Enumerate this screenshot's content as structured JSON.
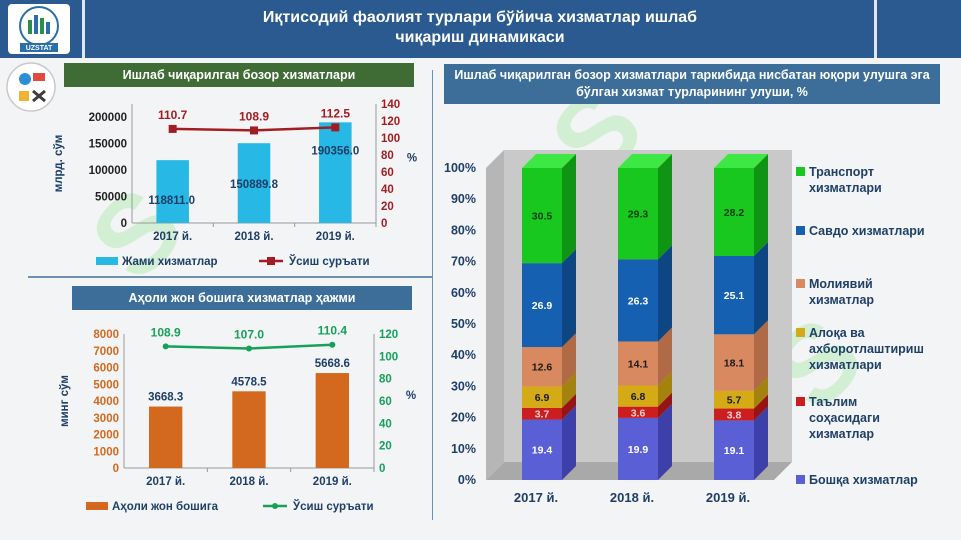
{
  "header": {
    "title_line1": "Иқтисодий фаолият турлари бўйича хизматлар ишлаб",
    "title_line2": "чиқариш динамикаси",
    "logo_text": "UZSTAT"
  },
  "chart1": {
    "title": "Ишлаб чиқарилган бозор хизматлари",
    "chart_data": {
      "type": "bar",
      "categories": [
        "2017 й.",
        "2018 й.",
        "2019 й."
      ],
      "series": [
        {
          "name": "Жами хизматлар",
          "type": "bar",
          "axis": "left",
          "values": [
            118811.0,
            150889.8,
            190356.0
          ],
          "labels": [
            "118811.0",
            "150889.8",
            "190356.0"
          ]
        },
        {
          "name": "Ўсиш суръати",
          "type": "line",
          "axis": "right",
          "values": [
            110.7,
            108.9,
            112.5
          ],
          "labels": [
            "110.7",
            "108.9",
            "112.5"
          ]
        }
      ],
      "ylabel": "млрд. сўм",
      "y2label": "%",
      "ylim": [
        0,
        225000
      ],
      "y2lim": [
        0,
        140
      ],
      "yticks": [
        "0",
        "50000",
        "100000",
        "150000",
        "200000"
      ],
      "y2ticks": [
        "0",
        "20",
        "40",
        "60",
        "80",
        "100",
        "120",
        "140"
      ],
      "colors": {
        "bar": "#27b8e6",
        "line": "#a21d22"
      }
    }
  },
  "chart2": {
    "title": "Аҳоли жон бошига хизматлар ҳажми",
    "chart_data": {
      "type": "bar",
      "categories": [
        "2017 й.",
        "2018 й.",
        "2019 й."
      ],
      "series": [
        {
          "name": "Аҳоли жон бошига",
          "type": "bar",
          "axis": "left",
          "values": [
            3668.3,
            4578.5,
            5668.6
          ],
          "labels": [
            "3668.3",
            "4578.5",
            "5668.6"
          ]
        },
        {
          "name": "Ўсиш суръати",
          "type": "line",
          "axis": "right",
          "values": [
            108.9,
            107.0,
            110.4
          ],
          "labels": [
            "108.9",
            "107.0",
            "110.4"
          ]
        }
      ],
      "ylabel": "минг сўм",
      "y2label": "%",
      "ylim": [
        0,
        8000
      ],
      "y2lim": [
        0,
        120
      ],
      "yticks": [
        "0",
        "1000",
        "2000",
        "3000",
        "4000",
        "5000",
        "6000",
        "7000",
        "8000"
      ],
      "y2ticks": [
        "0",
        "20",
        "40",
        "60",
        "80",
        "100",
        "120"
      ],
      "colors": {
        "bar": "#d2691e",
        "line": "#16a05a",
        "axis_left": "#d2691e",
        "axis_right": "#16a05a"
      }
    }
  },
  "chart3": {
    "title": "Ишлаб чиқарилган бозор хизматлари таркибида нисбатан юқори улушга эга бўлган хизмат турларининг улуши, %",
    "chart_data": {
      "type": "bar",
      "stacked": true,
      "categories": [
        "2017 й.",
        "2018 й.",
        "2019 й."
      ],
      "yticks": [
        "0%",
        "10%",
        "20%",
        "30%",
        "40%",
        "50%",
        "60%",
        "70%",
        "80%",
        "90%",
        "100%"
      ],
      "ylim": [
        0,
        100
      ],
      "series": [
        {
          "name": "Бошқа хизматлар",
          "legend_lines": [
            "Бошқа хизматлар"
          ],
          "values": [
            19.4,
            19.9,
            19.1
          ],
          "labels": [
            "19.4",
            "19.9",
            "19.1"
          ],
          "color": "#5a5fd6",
          "side": "#3c40a8"
        },
        {
          "name": "Таълим соҳасидаги хизматлар",
          "legend_lines": [
            "Таълим",
            "соҳасидаги",
            "хизматлар"
          ],
          "values": [
            3.7,
            3.6,
            3.8
          ],
          "labels": [
            "3.7",
            "3.6",
            "3.8"
          ],
          "color": "#cc1e1e",
          "side": "#981414"
        },
        {
          "name": "Алоқа ва ахборотлаштириш хизматлари",
          "legend_lines": [
            "Алоқа ва",
            "ахборотлаштириш",
            "хизматлари"
          ],
          "values": [
            6.9,
            6.8,
            5.7
          ],
          "labels": [
            "6.9",
            "6.8",
            "5.7"
          ],
          "color": "#d4aa16",
          "side": "#a4820e"
        },
        {
          "name": "Молиявий хизматлар",
          "legend_lines": [
            "Молиявий",
            "хизматлар"
          ],
          "values": [
            12.6,
            14.1,
            18.1
          ],
          "labels": [
            "12.6",
            "14.1",
            "18.1"
          ],
          "color": "#d9895f",
          "side": "#b06a45"
        },
        {
          "name": "Савдо хизматлари",
          "legend_lines": [
            "Савдо хизматлари"
          ],
          "values": [
            26.9,
            26.3,
            25.1
          ],
          "labels": [
            "26.9",
            "26.3",
            "25.1"
          ],
          "color": "#1560b0",
          "side": "#0d4682"
        },
        {
          "name": "Транспорт хизматлари",
          "legend_lines": [
            "Транспорт",
            "хизматлари"
          ],
          "values": [
            30.5,
            29.3,
            28.2
          ],
          "labels": [
            "30.5",
            "29.3",
            "28.2"
          ],
          "color": "#18c81e",
          "side": "#0f9414"
        }
      ]
    }
  }
}
